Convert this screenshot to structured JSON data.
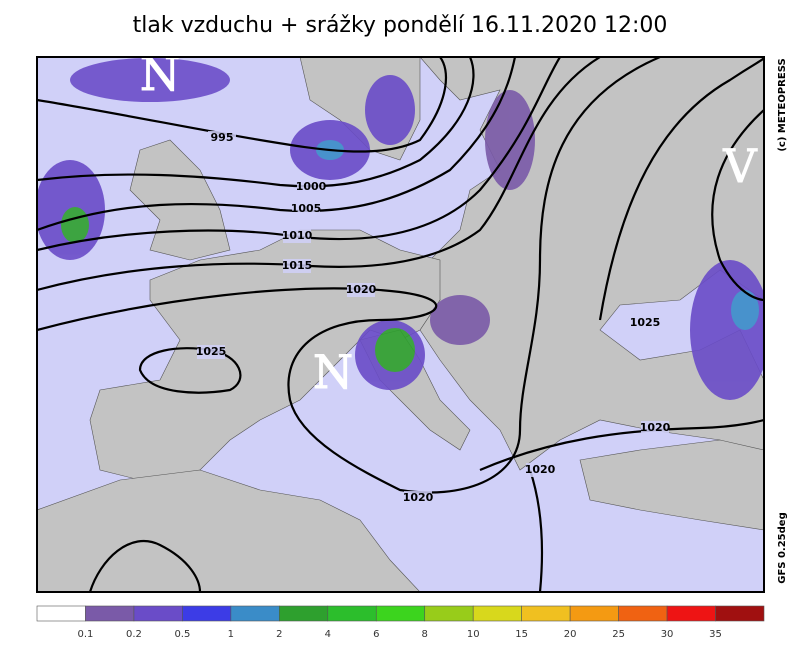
{
  "title": "tlak vzduchu + srážky pondělí 16.11.2020 12:00",
  "copyright": "(c) METEOPRESS",
  "model": "GFS 0.25deg",
  "centers": [
    "N",
    "V",
    "N"
  ],
  "isobars": [
    "995",
    "1000",
    "1005",
    "1010",
    "1015",
    "1020",
    "1025",
    "1025",
    "1020",
    "1020",
    "1020"
  ],
  "legend": {
    "colors": [
      "#ffffff",
      "#7a5aa8",
      "#6a4cc8",
      "#3c3ce6",
      "#3a8cc8",
      "#2ea02e",
      "#2cbe2c",
      "#3cd41e",
      "#98cc1a",
      "#d8d81c",
      "#f0c020",
      "#f49a12",
      "#f06212",
      "#ee1414",
      "#a01010"
    ],
    "labels": [
      "0.1",
      "0.2",
      "0.5",
      "1",
      "2",
      "4",
      "6",
      "8",
      "10",
      "15",
      "20",
      "25",
      "30",
      "35"
    ]
  }
}
